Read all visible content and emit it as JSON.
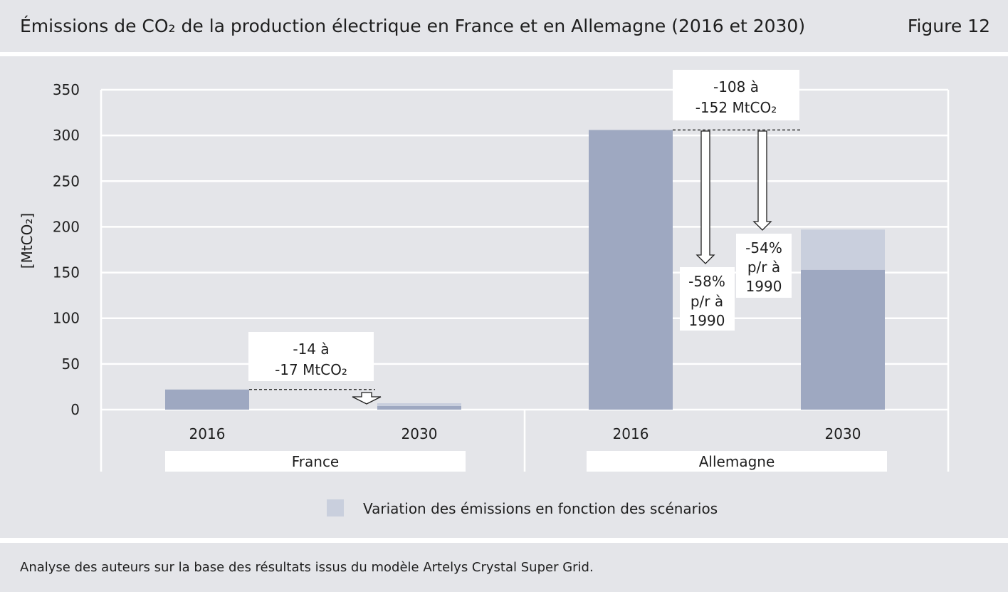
{
  "header": {
    "title": "Émissions de CO₂ de la production électrique en France et en Allemagne (2016 et 2030)",
    "figure_label": "Figure 12"
  },
  "footer": {
    "source": "Analyse des auteurs sur la base des résultats issus du modèle Artelys Crystal Super Grid."
  },
  "colors": {
    "panel_bg": "#e4e5e9",
    "bar_base": "#9ea8c1",
    "bar_variation": "#c9cfdd",
    "grid": "#ffffff",
    "text": "#1e1e1e"
  },
  "chart_data": {
    "type": "bar",
    "ylabel": "[MtCO₂]",
    "ylim": [
      0,
      350
    ],
    "yticks": [
      0,
      50,
      100,
      150,
      200,
      250,
      300,
      350
    ],
    "ytick_labels": [
      "0",
      "50",
      "100",
      "150",
      "200",
      "250",
      "300",
      "350"
    ],
    "grid": true,
    "groups": [
      {
        "name": "France",
        "categories": [
          "2016",
          "2030"
        ]
      },
      {
        "name": "Allemagne",
        "categories": [
          "2016",
          "2030"
        ]
      }
    ],
    "series": [
      {
        "name": "",
        "values": [
          22,
          4,
          306,
          153
        ]
      },
      {
        "name": "Variation des émissions en fonction des scénarios",
        "values": [
          0,
          3,
          0,
          44
        ]
      }
    ],
    "annotations": [
      {
        "lines": [
          "-14 à",
          "-17 MtCO₂"
        ]
      },
      {
        "lines": [
          "-108 à",
          "-152 MtCO₂"
        ]
      },
      {
        "lines": [
          "-58%",
          "p/r à",
          "1990"
        ]
      },
      {
        "lines": [
          "-54%",
          "p/r à",
          "1990"
        ]
      }
    ],
    "legend": {
      "label": "Variation des émissions en fonction des scénarios",
      "position": "bottom"
    }
  }
}
